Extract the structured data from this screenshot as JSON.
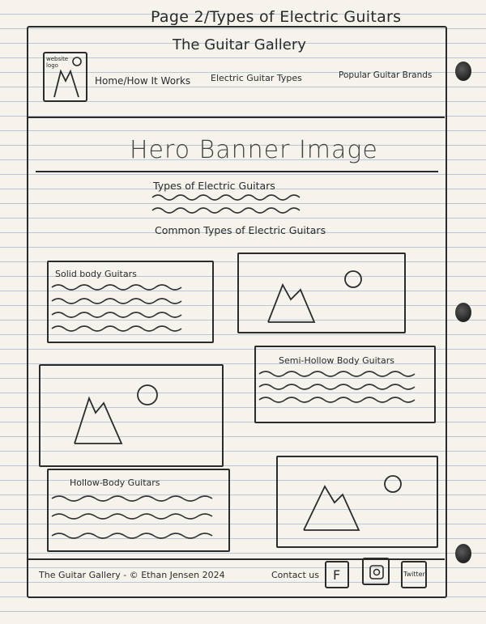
{
  "page_heading": "Page 2/Types of Electric Guitars",
  "header": {
    "site_title": "The Guitar Gallery",
    "logo_label": "website logo",
    "nav": [
      {
        "label": "Home/How It Works"
      },
      {
        "label": "Electric Guitar Types"
      },
      {
        "label": "Popular Guitar Brands"
      }
    ]
  },
  "hero": {
    "label": "Hero Banner Image"
  },
  "intro": {
    "title": "Types of Electric Guitars",
    "subtitle": "Common Types of Electric Guitars"
  },
  "sections": [
    {
      "title": "Solid body Guitars"
    },
    {
      "title": "Semi-Hollow Body Guitars"
    },
    {
      "title": "Hollow-Body Guitars"
    }
  ],
  "footer": {
    "copyright": "The Guitar Gallery - © Ethan Jensen 2024",
    "contact": "Contact us",
    "social": [
      {
        "label": "F",
        "icon": "facebook-icon"
      },
      {
        "label": "",
        "icon": "instagram-icon"
      },
      {
        "label": "Twitter",
        "icon": "twitter-icon"
      }
    ]
  }
}
